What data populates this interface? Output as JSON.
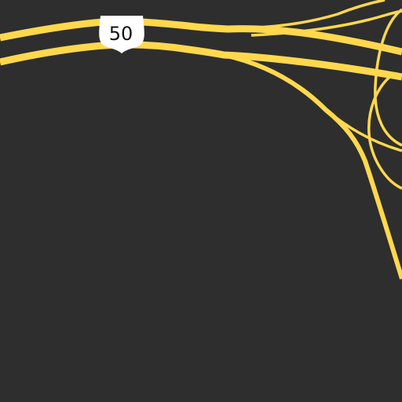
{
  "map": {
    "background_color": "#2e2e2e",
    "road_color": "#ffd84d",
    "shield": {
      "route_number": "50",
      "icon": "us-route-shield-icon",
      "fill_color": "#ffffff",
      "text_color": "#111111"
    }
  }
}
